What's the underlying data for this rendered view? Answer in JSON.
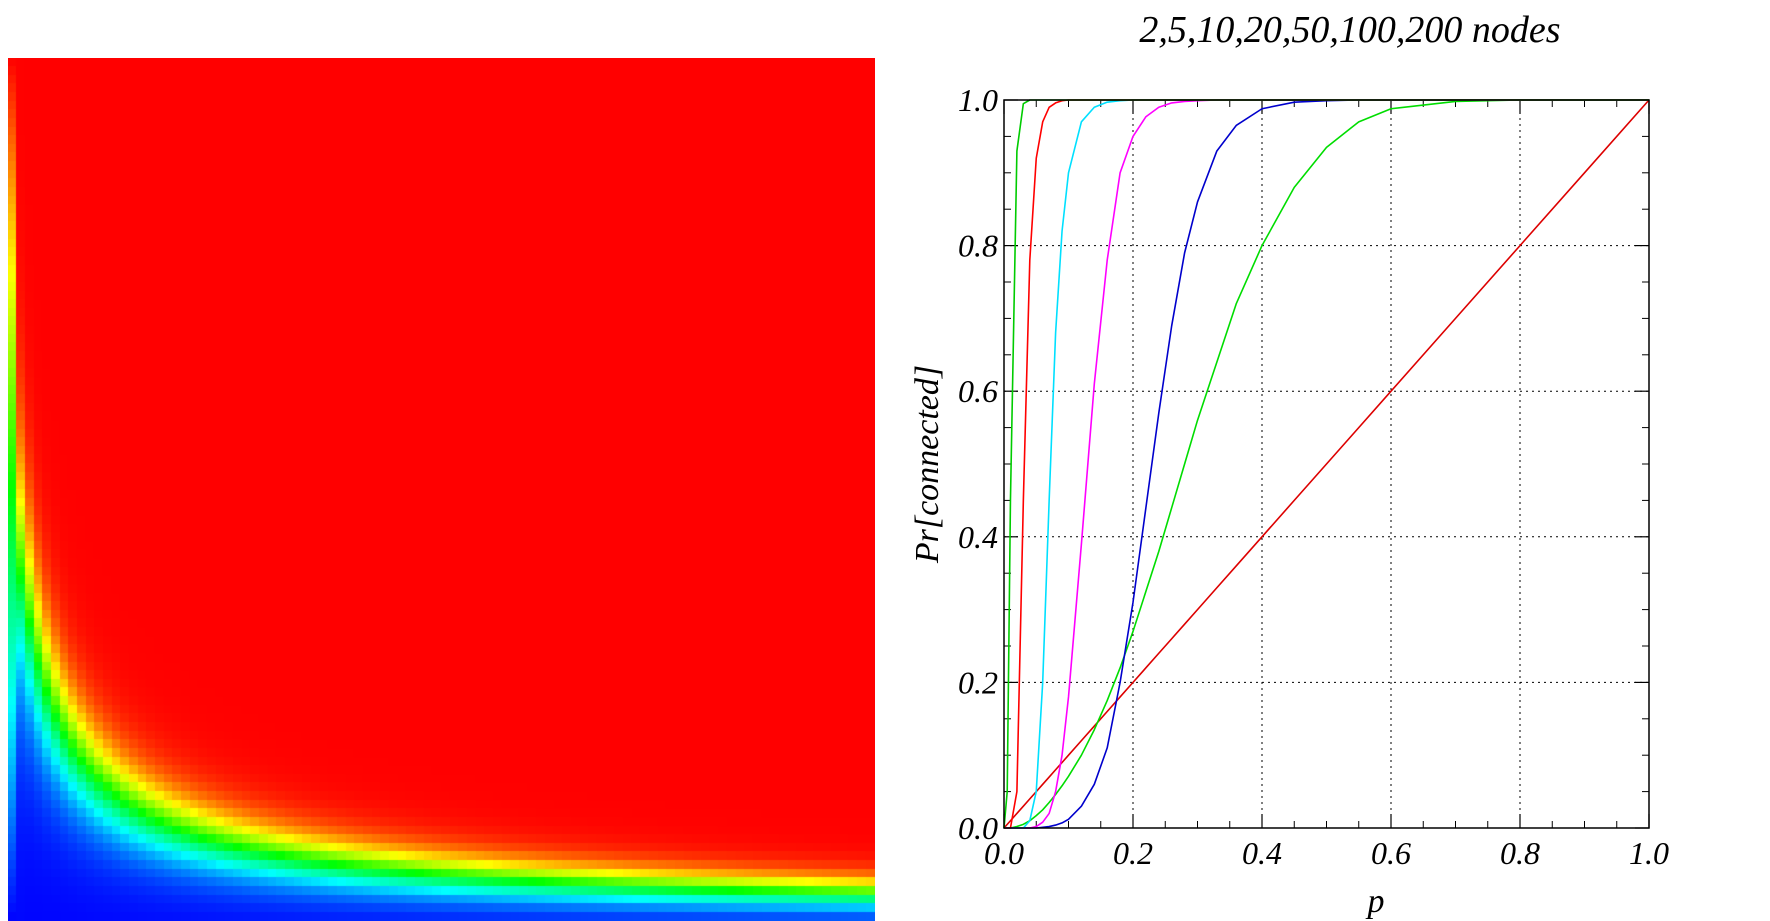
{
  "chart_data": [
    {
      "type": "heatmap",
      "colormap": [
        "#0000ff",
        "#00ffff",
        "#00ff00",
        "#ffff00",
        "#ff0000"
      ],
      "columns": 100,
      "rows": 100
    },
    {
      "type": "line",
      "title": "2,5,10,20,50,100,200 nodes",
      "xlabel": "p",
      "ylabel": "Pr[connected]",
      "xlim": [
        0,
        1
      ],
      "ylim": [
        0,
        1
      ],
      "xticks": [
        "0.0",
        "0.2",
        "0.4",
        "0.6",
        "0.8",
        "1.0"
      ],
      "yticks": [
        "0.0",
        "0.2",
        "0.4",
        "0.6",
        "0.8",
        "1.0"
      ],
      "grid": true,
      "legend": "none",
      "x": [
        0.0,
        0.005,
        0.01,
        0.02,
        0.03,
        0.04,
        0.05,
        0.06,
        0.07,
        0.08,
        0.09,
        0.1,
        0.12,
        0.14,
        0.16,
        0.18,
        0.2,
        0.22,
        0.24,
        0.26,
        0.28,
        0.3,
        0.33,
        0.36,
        0.4,
        0.45,
        0.5,
        0.55,
        0.6,
        0.7,
        0.8,
        0.9,
        1.0
      ],
      "series": [
        {
          "color": "#dd0000",
          "values": [
            0.0,
            0.005,
            0.01,
            0.02,
            0.03,
            0.04,
            0.05,
            0.06,
            0.07,
            0.08,
            0.09,
            0.1,
            0.12,
            0.14,
            0.16,
            0.18,
            0.2,
            0.22,
            0.24,
            0.26,
            0.28,
            0.3,
            0.33,
            0.36,
            0.4,
            0.45,
            0.5,
            0.55,
            0.6,
            0.7,
            0.8,
            0.9,
            1.0
          ]
        },
        {
          "color": "#00dd00",
          "values": [
            0.0,
            0.0,
            0.0,
            0.002,
            0.005,
            0.01,
            0.017,
            0.025,
            0.035,
            0.046,
            0.058,
            0.071,
            0.1,
            0.135,
            0.175,
            0.22,
            0.27,
            0.325,
            0.38,
            0.44,
            0.5,
            0.56,
            0.64,
            0.72,
            0.8,
            0.88,
            0.935,
            0.97,
            0.988,
            0.998,
            1.0,
            1.0,
            1.0
          ]
        },
        {
          "color": "#0000cc",
          "values": [
            0.0,
            0.0,
            0.0,
            0.0,
            0.0,
            0.0,
            0.0,
            0.001,
            0.002,
            0.004,
            0.007,
            0.012,
            0.03,
            0.06,
            0.11,
            0.2,
            0.31,
            0.44,
            0.57,
            0.69,
            0.79,
            0.86,
            0.93,
            0.965,
            0.988,
            0.997,
            0.999,
            1.0,
            1.0,
            1.0,
            1.0,
            1.0,
            1.0
          ]
        },
        {
          "color": "#ff00ff",
          "values": [
            0.0,
            0.0,
            0.0,
            0.0,
            0.0,
            0.0,
            0.002,
            0.008,
            0.02,
            0.05,
            0.1,
            0.18,
            0.39,
            0.61,
            0.78,
            0.9,
            0.95,
            0.977,
            0.99,
            0.996,
            0.998,
            0.999,
            1.0,
            1.0,
            1.0,
            1.0,
            1.0,
            1.0,
            1.0,
            1.0,
            1.0,
            1.0,
            1.0
          ]
        },
        {
          "color": "#00e0ff",
          "values": [
            0.0,
            0.0,
            0.0,
            0.0,
            0.0,
            0.01,
            0.05,
            0.2,
            0.45,
            0.68,
            0.82,
            0.9,
            0.97,
            0.99,
            0.997,
            0.999,
            1.0,
            1.0,
            1.0,
            1.0,
            1.0,
            1.0,
            1.0,
            1.0,
            1.0,
            1.0,
            1.0,
            1.0,
            1.0,
            1.0,
            1.0,
            1.0,
            1.0
          ]
        },
        {
          "color": "#ff0000",
          "values": [
            0.0,
            0.0,
            0.0,
            0.05,
            0.45,
            0.78,
            0.92,
            0.97,
            0.99,
            0.996,
            0.999,
            1.0,
            1.0,
            1.0,
            1.0,
            1.0,
            1.0,
            1.0,
            1.0,
            1.0,
            1.0,
            1.0,
            1.0,
            1.0,
            1.0,
            1.0,
            1.0,
            1.0,
            1.0,
            1.0,
            1.0,
            1.0,
            1.0
          ]
        },
        {
          "color": "#00cc00",
          "values": [
            0.0,
            0.05,
            0.45,
            0.93,
            0.995,
            1.0,
            1.0,
            1.0,
            1.0,
            1.0,
            1.0,
            1.0,
            1.0,
            1.0,
            1.0,
            1.0,
            1.0,
            1.0,
            1.0,
            1.0,
            1.0,
            1.0,
            1.0,
            1.0,
            1.0,
            1.0,
            1.0,
            1.0,
            1.0,
            1.0,
            1.0,
            1.0,
            1.0
          ]
        }
      ]
    }
  ]
}
